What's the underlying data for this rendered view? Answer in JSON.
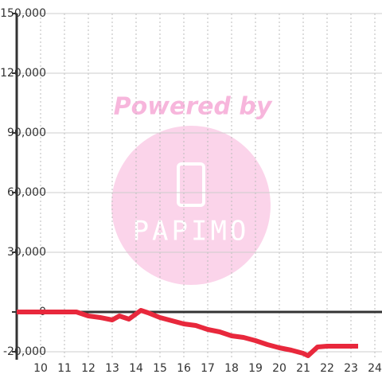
{
  "chart_data": {
    "type": "line",
    "x": [
      9,
      11.5,
      12,
      12.5,
      13,
      13.3,
      13.7,
      14.2,
      14.5,
      15,
      15.5,
      16,
      16.5,
      17,
      17.5,
      18,
      18.5,
      19,
      19.5,
      20,
      20.5,
      21,
      21.2,
      21.6,
      22,
      23.3
    ],
    "series": [
      {
        "color": "#e8283c",
        "values": [
          0,
          0,
          -2000,
          -2800,
          -4000,
          -2000,
          -3600,
          800,
          -400,
          -2800,
          -4400,
          -6000,
          -6800,
          -8800,
          -10000,
          -12000,
          -12800,
          -14400,
          -16400,
          -18000,
          -19200,
          -20800,
          -22000,
          -17600,
          -17200,
          -17200
        ]
      }
    ],
    "xlim": [
      9,
      24.3
    ],
    "ylim": [
      -24000,
      150000
    ],
    "xticks": [
      10,
      11,
      12,
      13,
      14,
      15,
      16,
      17,
      18,
      19,
      20,
      21,
      22,
      23,
      24
    ],
    "yticks": [
      {
        "value": -20000,
        "label": "-20,000"
      },
      0,
      {
        "value": 30000,
        "label": "30,000"
      },
      {
        "value": 60000,
        "label": "60,000"
      },
      {
        "value": 90000,
        "label": "90,000"
      },
      {
        "value": 120000,
        "label": "120,000"
      },
      {
        "value": 150000,
        "label": "150,000"
      }
    ],
    "grid": true,
    "watermark": {
      "text": "Powered by",
      "logo": "PAPIMO"
    }
  }
}
